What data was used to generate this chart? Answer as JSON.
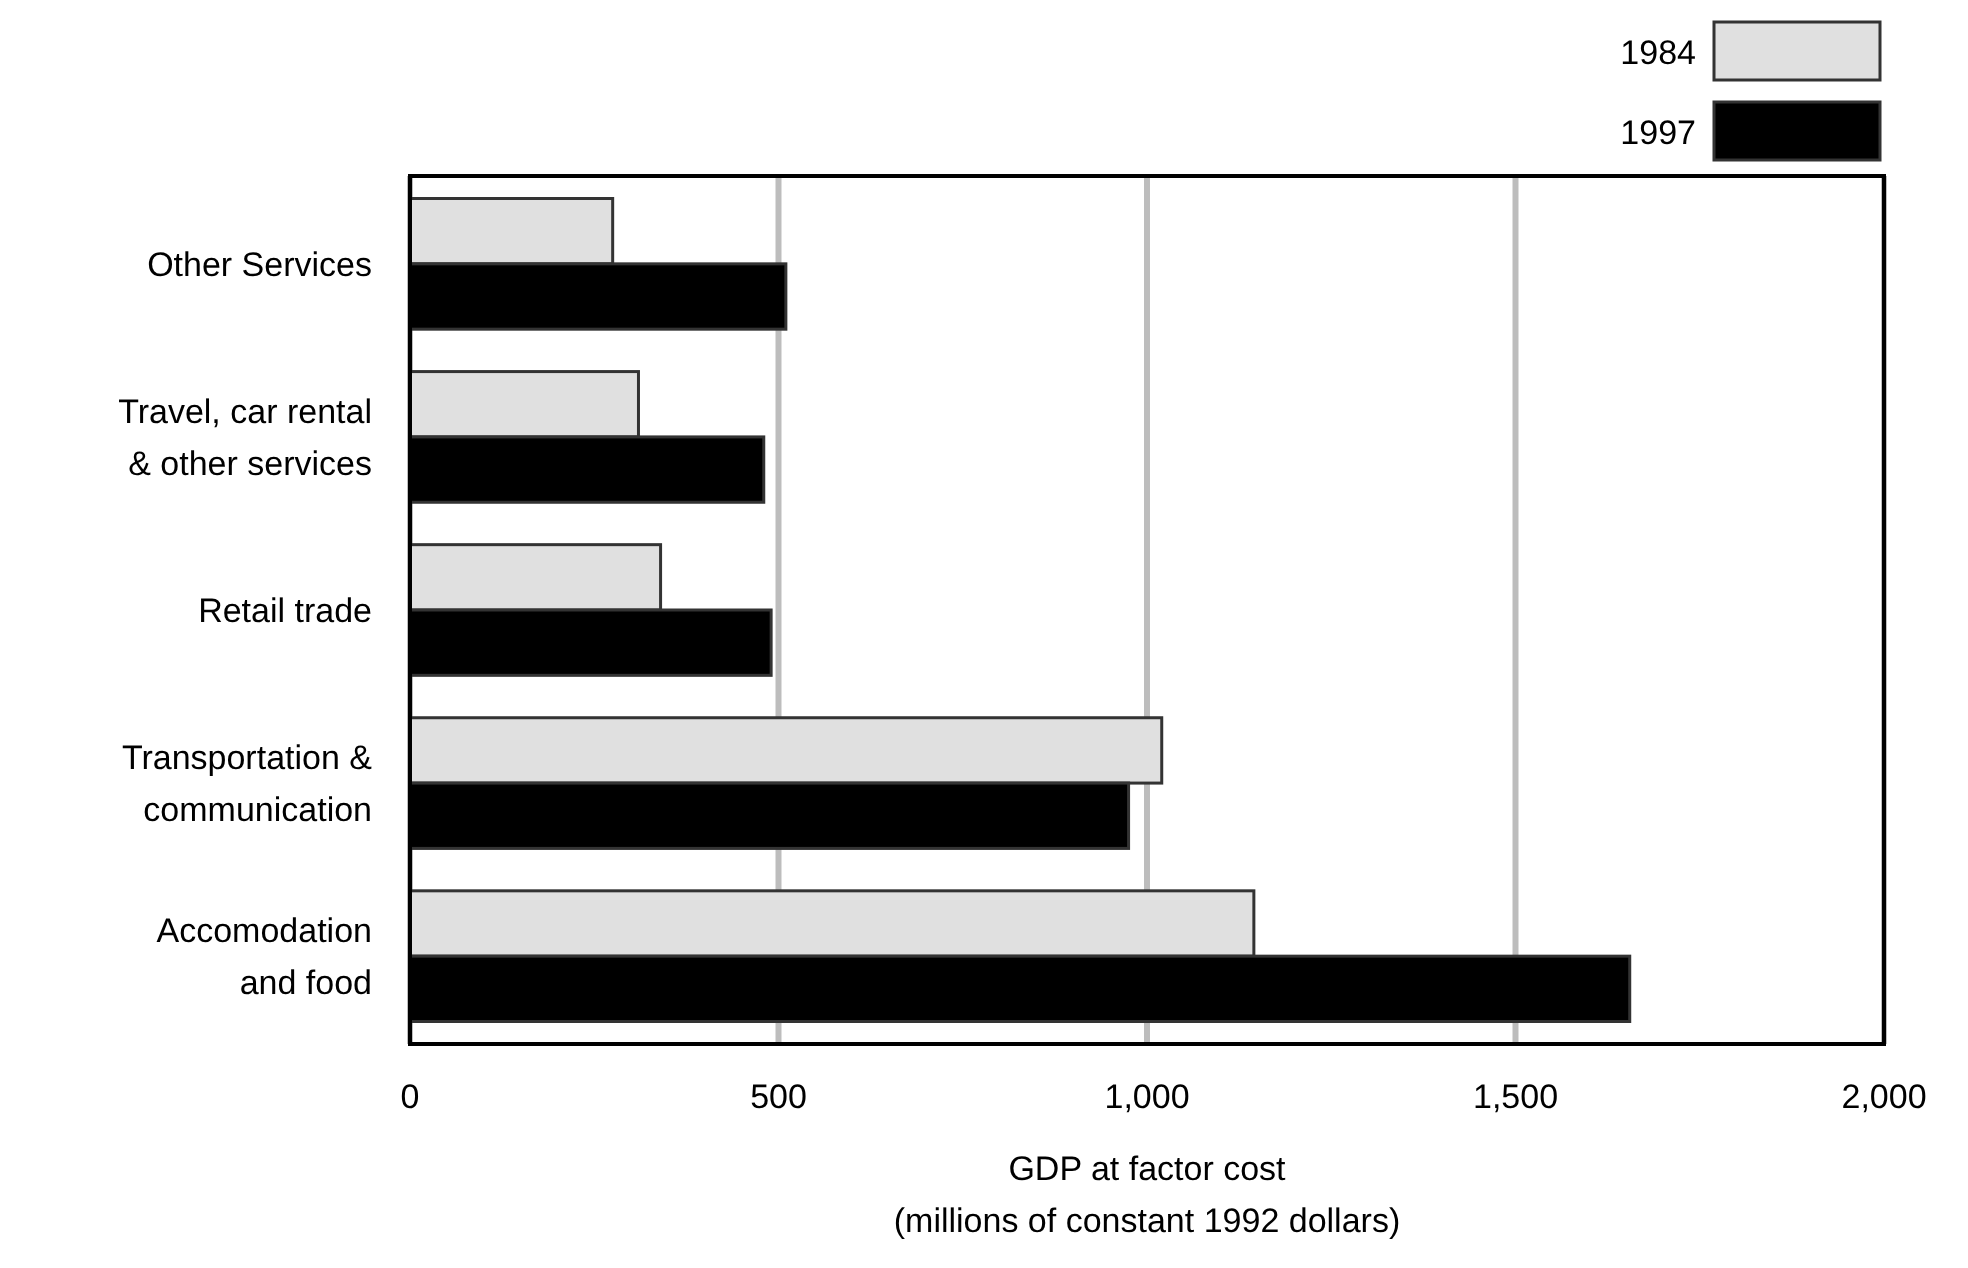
{
  "chart_data": {
    "type": "bar",
    "orientation": "horizontal",
    "categories": [
      "Other Services",
      "Travel, car rental\n& other services",
      "Retail trade",
      "Transportation &\ncommunication",
      "Accomodation\nand food"
    ],
    "series": [
      {
        "name": "1984",
        "color": "#e0e0e0",
        "values": [
          275,
          310,
          340,
          1020,
          1145
        ]
      },
      {
        "name": "1997",
        "color": "#000000",
        "values": [
          510,
          480,
          490,
          975,
          1655
        ]
      }
    ],
    "xlim": [
      0,
      2000
    ],
    "xticks": [
      0,
      500,
      {
        "value": 1000,
        "label": "1,000"
      },
      {
        "value": 1500,
        "label": "1,500"
      },
      {
        "value": 2000,
        "label": "2,000"
      }
    ],
    "xlabel": "GDP at factor cost\n(millions of constant 1992 dollars)",
    "grid": "x",
    "legend": "top right"
  }
}
